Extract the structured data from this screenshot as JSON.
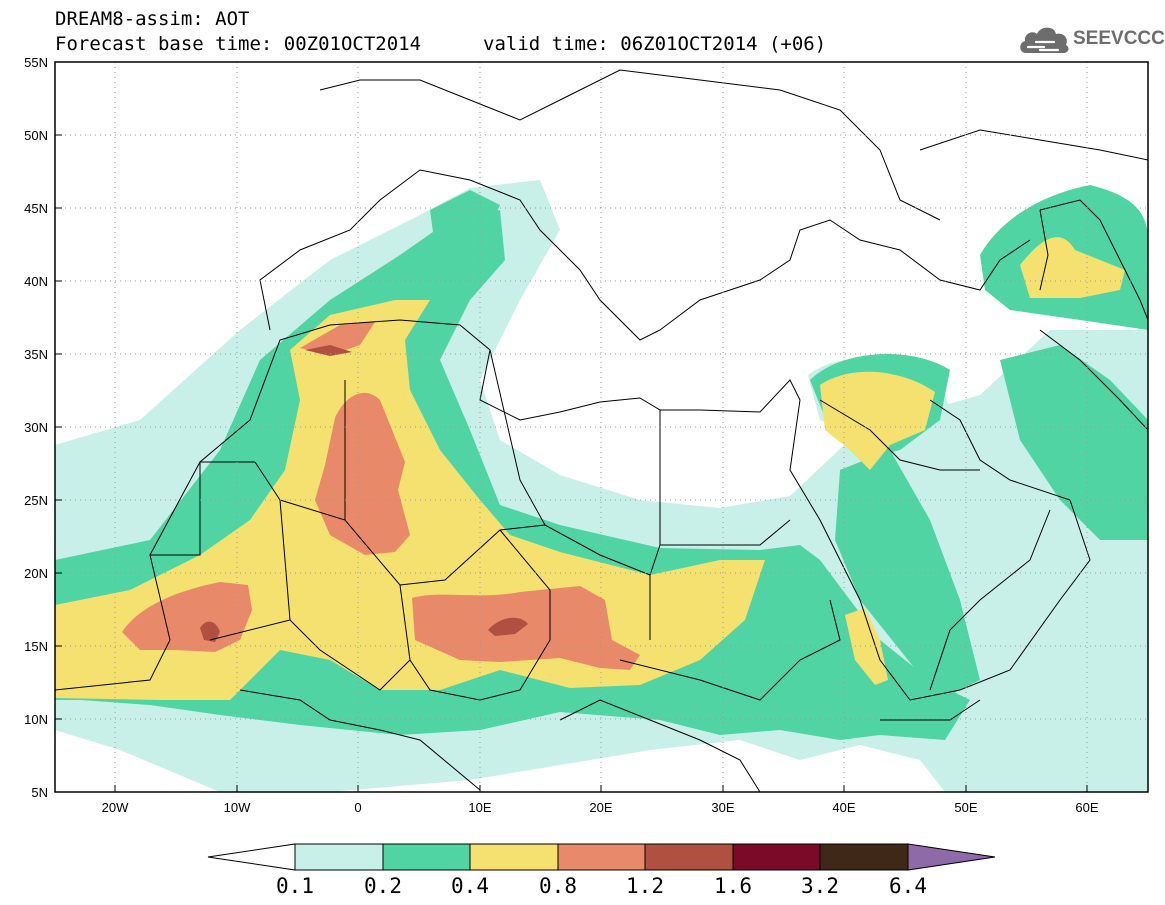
{
  "header": {
    "title": "DREAM8-assim: AOT",
    "base_time": "Forecast base time: 00Z01OCT2014",
    "valid_time": "valid time: 06Z01OCT2014 (+06)"
  },
  "logo": {
    "text": "SEEVCCC",
    "icon": "cloud-icon",
    "color": "#6d6d6d"
  },
  "map": {
    "projection": "equirectangular",
    "lon_range": [
      -25,
      65
    ],
    "lat_range": [
      5,
      55
    ],
    "grid": "dotted",
    "lat_ticks": [
      "55N",
      "50N",
      "45N",
      "40N",
      "35N",
      "30N",
      "25N",
      "20N",
      "15N",
      "10N",
      "5N"
    ],
    "lon_ticks": [
      "20W",
      "10W",
      "0",
      "10E",
      "20E",
      "30E",
      "40E",
      "50E",
      "60E"
    ]
  },
  "legend": {
    "labels": [
      "0.1",
      "0.2",
      "0.4",
      "0.8",
      "1.2",
      "1.6",
      "3.2",
      "6.4"
    ],
    "bins": [
      {
        "range": "<0.1",
        "color": "#ffffff"
      },
      {
        "range": "0.1-0.2",
        "color": "#c8f0e8"
      },
      {
        "range": "0.2-0.4",
        "color": "#50d4a4"
      },
      {
        "range": "0.4-0.8",
        "color": "#f4e170"
      },
      {
        "range": "0.8-1.2",
        "color": "#e8896a"
      },
      {
        "range": "1.2-1.6",
        "color": "#b05040"
      },
      {
        "range": "1.6-3.2",
        "color": "#7a0a28"
      },
      {
        "range": "3.2-6.4",
        "color": "#402818"
      },
      {
        "range": ">6.4",
        "color": "#8e6aa8"
      }
    ]
  }
}
